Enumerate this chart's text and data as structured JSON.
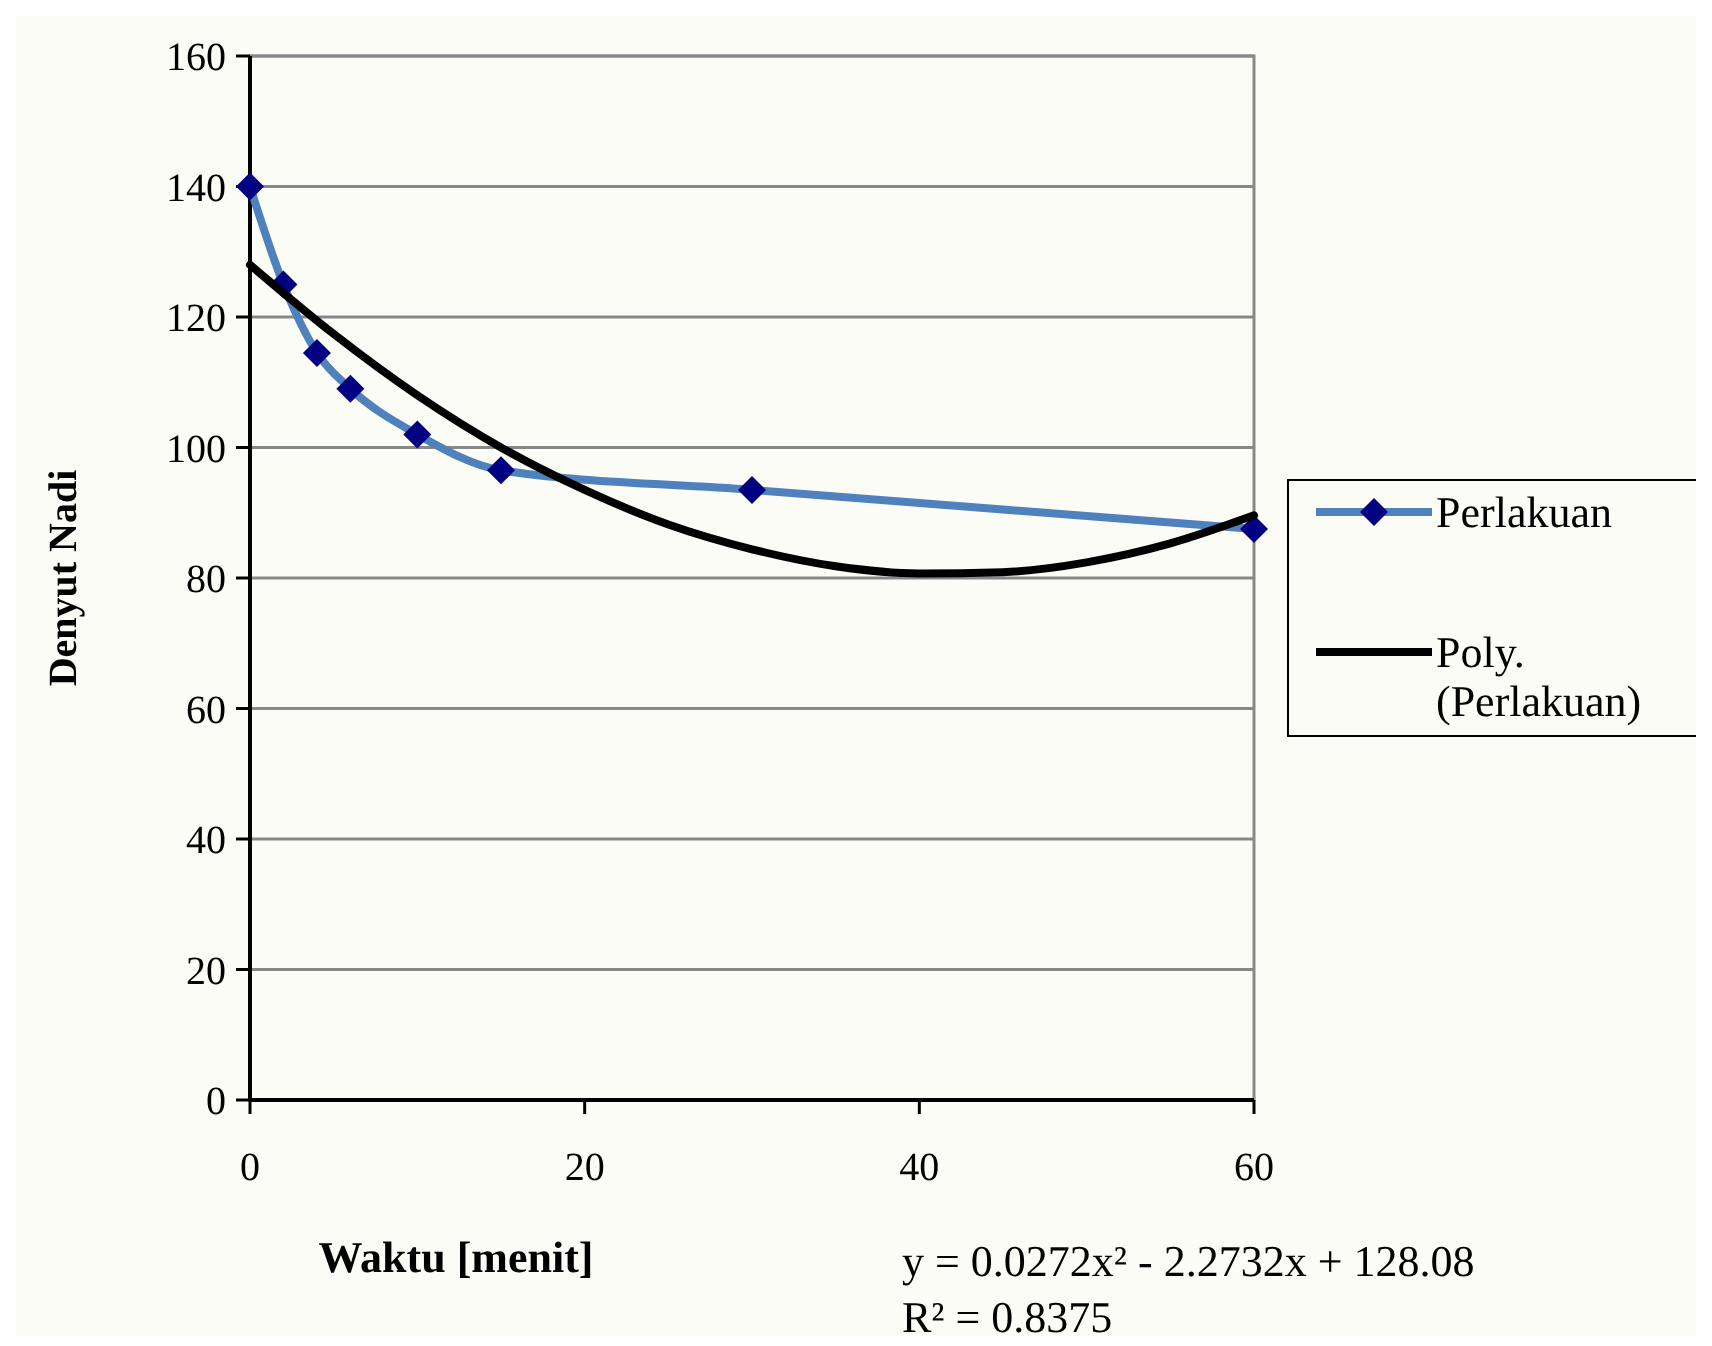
{
  "chart_data": {
    "type": "line",
    "xlabel": "Waktu [menit]",
    "ylabel": "Denyut Nadi",
    "xlim": [
      0,
      60
    ],
    "ylim": [
      0,
      160
    ],
    "xticks": [
      0,
      20,
      40,
      60
    ],
    "yticks": [
      0,
      20,
      40,
      60,
      80,
      100,
      120,
      140,
      160
    ],
    "grid": "y",
    "legend": "right",
    "series": [
      {
        "name": "Perlakuan",
        "color": "#4f81bd",
        "marker": "diamond",
        "x": [
          0,
          2,
          4,
          6,
          10,
          15,
          30,
          60
        ],
        "values": [
          140,
          125,
          114.5,
          109,
          102,
          96.5,
          93.5,
          87.5
        ]
      },
      {
        "name": "Poly. (Perlakuan)",
        "color": "#000000",
        "marker": "none",
        "x": [
          0,
          5,
          10,
          15,
          20,
          25,
          30,
          35,
          40,
          45,
          50,
          55,
          60
        ],
        "values": [
          128,
          117.4,
          108,
          100,
          93.5,
          88.2,
          84.4,
          81.8,
          80.7,
          80.9,
          82.4,
          85.3,
          89.6
        ]
      }
    ],
    "annotations": [
      "y = 0.0272x² - 2.2732x + 128.08",
      "R² = 0.8375"
    ]
  }
}
